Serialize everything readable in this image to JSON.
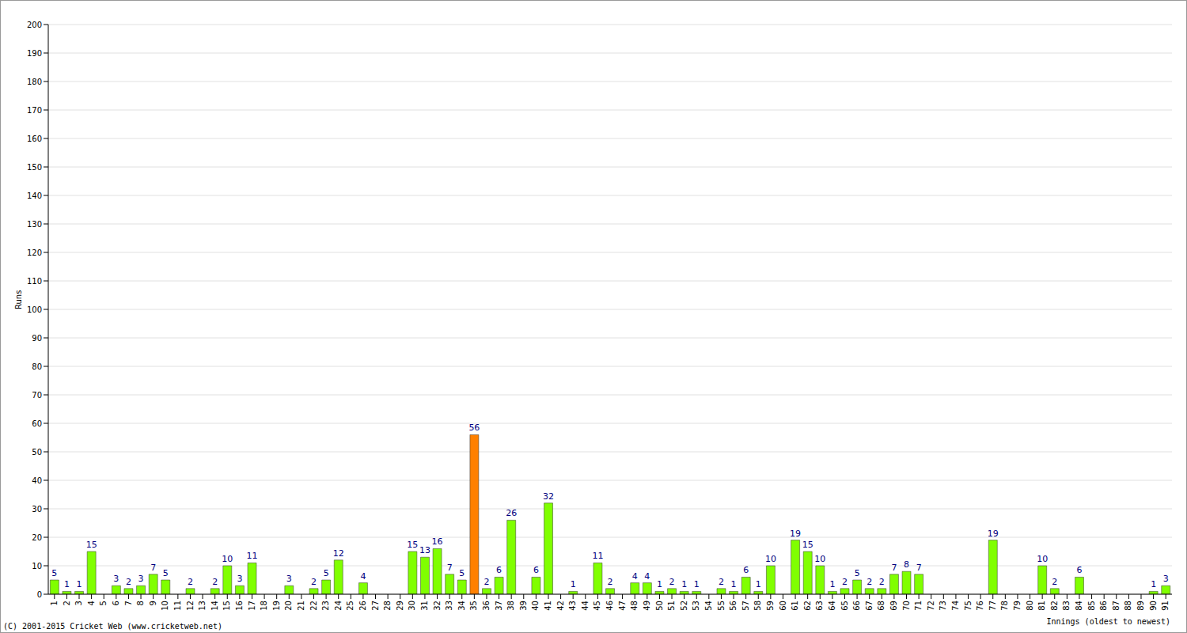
{
  "chart_data": {
    "type": "bar",
    "title": "",
    "x_label": "Innings (oldest to newest)",
    "y_label": "Runs",
    "annotations": [
      "(C) 2001-2015 Cricket Web (www.cricketweb.net)"
    ],
    "categories": [
      "1",
      "2",
      "3",
      "4",
      "5",
      "6",
      "7",
      "8",
      "9",
      "10",
      "11",
      "12",
      "13",
      "14",
      "15",
      "16",
      "17",
      "18",
      "19",
      "20",
      "21",
      "22",
      "23",
      "24",
      "25",
      "26",
      "27",
      "28",
      "29",
      "30",
      "31",
      "32",
      "33",
      "34",
      "35",
      "36",
      "37",
      "38",
      "39",
      "40",
      "41",
      "42",
      "43",
      "44",
      "45",
      "46",
      "47",
      "48",
      "49",
      "50",
      "51",
      "52",
      "53",
      "54",
      "55",
      "56",
      "57",
      "58",
      "59",
      "60",
      "61",
      "62",
      "63",
      "64",
      "65",
      "66",
      "67",
      "68",
      "69",
      "70",
      "71",
      "72",
      "73",
      "74",
      "75",
      "76",
      "77",
      "78",
      "79",
      "80",
      "81",
      "82",
      "83",
      "84",
      "85",
      "86",
      "87",
      "88",
      "89",
      "90",
      "91"
    ],
    "values": [
      5,
      1,
      1,
      15,
      0,
      3,
      2,
      3,
      7,
      5,
      0,
      2,
      0,
      2,
      10,
      3,
      11,
      0,
      0,
      3,
      0,
      2,
      5,
      12,
      0,
      4,
      0,
      0,
      0,
      15,
      13,
      16,
      7,
      5,
      56,
      2,
      6,
      26,
      0,
      6,
      32,
      0,
      1,
      0,
      11,
      2,
      0,
      4,
      4,
      1,
      2,
      1,
      1,
      0,
      2,
      1,
      6,
      1,
      10,
      0,
      19,
      15,
      10,
      1,
      2,
      5,
      2,
      2,
      7,
      8,
      7,
      0,
      0,
      0,
      0,
      0,
      19,
      0,
      0,
      0,
      10,
      2,
      0,
      6,
      0,
      0,
      0,
      0,
      0,
      1,
      3
    ],
    "colors": [
      "#80ff00",
      "#80ff00",
      "#80ff00",
      "#80ff00",
      "#80ff00",
      "#80ff00",
      "#80ff00",
      "#80ff00",
      "#80ff00",
      "#80ff00",
      "#80ff00",
      "#80ff00",
      "#80ff00",
      "#80ff00",
      "#80ff00",
      "#80ff00",
      "#80ff00",
      "#80ff00",
      "#80ff00",
      "#80ff00",
      "#80ff00",
      "#80ff00",
      "#80ff00",
      "#80ff00",
      "#80ff00",
      "#80ff00",
      "#80ff00",
      "#80ff00",
      "#80ff00",
      "#80ff00",
      "#80ff00",
      "#80ff00",
      "#80ff00",
      "#80ff00",
      "#ff8000",
      "#80ff00",
      "#80ff00",
      "#80ff00",
      "#80ff00",
      "#80ff00",
      "#80ff00",
      "#80ff00",
      "#80ff00",
      "#80ff00",
      "#80ff00",
      "#80ff00",
      "#80ff00",
      "#80ff00",
      "#80ff00",
      "#80ff00",
      "#80ff00",
      "#80ff00",
      "#80ff00",
      "#80ff00",
      "#80ff00",
      "#80ff00",
      "#80ff00",
      "#80ff00",
      "#80ff00",
      "#80ff00",
      "#80ff00",
      "#80ff00",
      "#80ff00",
      "#80ff00",
      "#80ff00",
      "#80ff00",
      "#80ff00",
      "#80ff00",
      "#80ff00",
      "#80ff00",
      "#80ff00",
      "#80ff00",
      "#80ff00",
      "#80ff00",
      "#80ff00",
      "#80ff00",
      "#80ff00",
      "#80ff00",
      "#80ff00",
      "#80ff00",
      "#80ff00",
      "#80ff00",
      "#80ff00",
      "#80ff00",
      "#80ff00",
      "#80ff00",
      "#80ff00",
      "#80ff00",
      "#80ff00",
      "#80ff00",
      "#80ff00"
    ],
    "ylim": [
      0,
      200
    ],
    "yticks": [
      0,
      10,
      20,
      30,
      40,
      50,
      60,
      70,
      80,
      90,
      100,
      110,
      120,
      130,
      140,
      150,
      160,
      170,
      180,
      190,
      200
    ],
    "grid": true,
    "data_labels": true
  }
}
